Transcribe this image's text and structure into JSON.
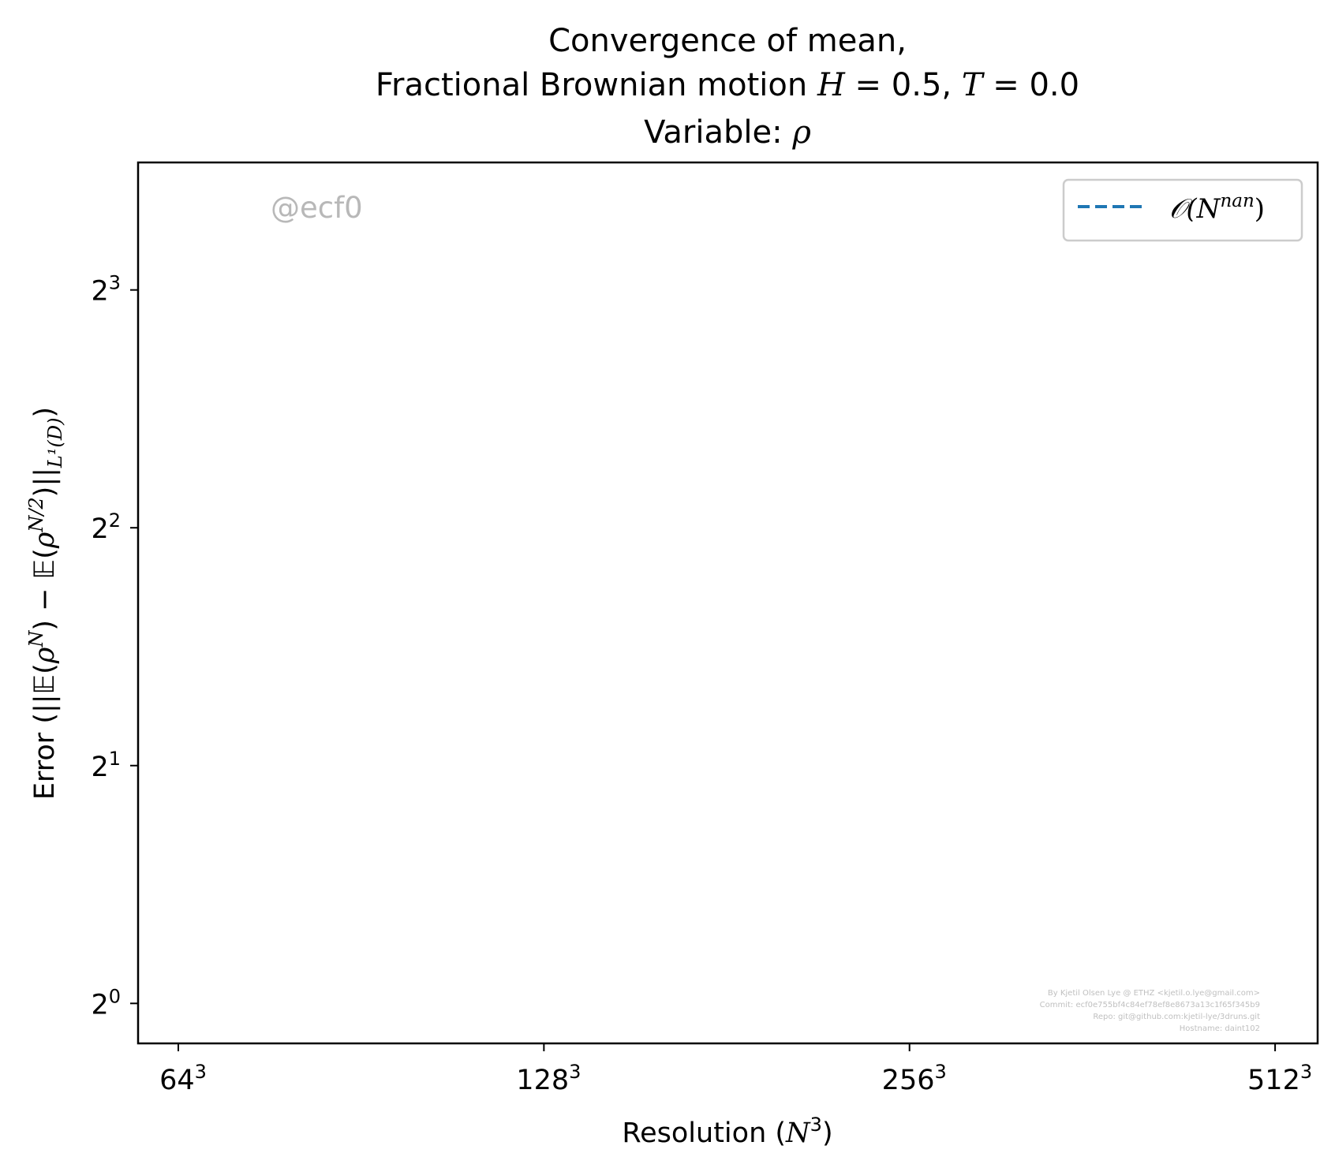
{
  "chart_data": {
    "type": "line",
    "title": [
      "Convergence of mean,",
      "Fractional Brownian motion H = 0.5, T = 0.0",
      "Variable: ρ"
    ],
    "xlabel": "Resolution (N³)",
    "ylabel": "Error (||𝔼(ρᴺ) − 𝔼(ρᴺ/²)||L¹(D))",
    "x_scale": "log2",
    "y_scale": "log2",
    "x_ticks": [
      {
        "value": 64,
        "base": "64",
        "exp": "3"
      },
      {
        "value": 128,
        "base": "128",
        "exp": "3"
      },
      {
        "value": 256,
        "base": "256",
        "exp": "3"
      },
      {
        "value": 512,
        "base": "512",
        "exp": "3"
      }
    ],
    "y_ticks": [
      {
        "value": 1,
        "base": "2",
        "exp": "0"
      },
      {
        "value": 2,
        "base": "2",
        "exp": "1"
      },
      {
        "value": 4,
        "base": "2",
        "exp": "2"
      },
      {
        "value": 8,
        "base": "2",
        "exp": "3"
      }
    ],
    "xlim": [
      59.3,
      555
    ],
    "ylim": [
      0.89,
      11.6
    ],
    "series": [
      {
        "name": "𝒪(N^nan)",
        "x": [],
        "y": [],
        "color": "#1f77b4",
        "dash": "dashed"
      }
    ],
    "legend": {
      "position": "top-right",
      "entries": [
        {
          "prefix": "𝒪(N",
          "exp": "nan",
          "suffix": ")"
        }
      ]
    },
    "grid": false,
    "watermark": "@ecf0",
    "footer": [
      "By Kjetil Olsen Lye @ ETHZ <kjetil.o.lye@gmail.com>",
      "Commit: ecf0e755bf4c84ef78ef8e8673a13c1f65f345b9",
      "Repo: git@github.com:kjetil-lye/3druns.git",
      "Hostname: daint102"
    ]
  }
}
